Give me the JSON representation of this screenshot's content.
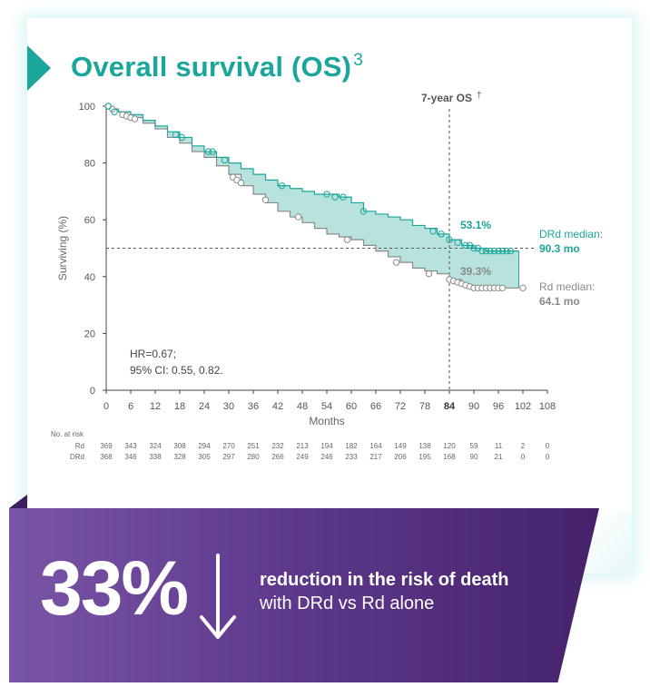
{
  "title": {
    "text": "Overall survival (OS)",
    "superscript": "3"
  },
  "colors": {
    "teal": "#1aa69a",
    "gray": "#8a8a8a",
    "fill": "#9fd8d3",
    "purple_start": "#7a55a6",
    "purple_end": "#45226a"
  },
  "chart_data": {
    "type": "line",
    "xlabel": "Months",
    "ylabel": "Surviving (%)",
    "xlim": [
      0,
      108
    ],
    "ylim": [
      0,
      100
    ],
    "xticks": [
      0,
      6,
      12,
      18,
      24,
      30,
      36,
      42,
      48,
      54,
      60,
      66,
      72,
      78,
      84,
      90,
      96,
      102,
      108
    ],
    "yticks": [
      0,
      20,
      40,
      60,
      80,
      100
    ],
    "highlight_tick": 84,
    "grid": false,
    "series": [
      {
        "name": "DRd",
        "color": "#1aa69a",
        "x": [
          0,
          1,
          3,
          6,
          9,
          12,
          15,
          18,
          21,
          24,
          27,
          30,
          33,
          36,
          39,
          42,
          45,
          48,
          51,
          54,
          57,
          60,
          63,
          66,
          69,
          72,
          75,
          78,
          81,
          84,
          87,
          90,
          93,
          96,
          99,
          101
        ],
        "y": [
          100,
          99,
          98,
          97,
          95,
          93,
          91,
          89,
          86,
          84,
          82,
          80,
          78,
          76,
          74,
          72,
          71,
          70,
          69,
          69,
          68,
          66,
          63,
          62,
          61,
          60,
          58,
          57,
          55,
          53,
          51,
          50,
          49,
          49,
          49,
          49
        ]
      },
      {
        "name": "Rd",
        "color": "#8a8a8a",
        "x": [
          0,
          1,
          3,
          6,
          9,
          12,
          15,
          18,
          21,
          24,
          27,
          30,
          33,
          36,
          39,
          42,
          45,
          48,
          51,
          54,
          57,
          60,
          63,
          66,
          69,
          72,
          75,
          78,
          81,
          84,
          87,
          90,
          93,
          96,
          99,
          101
        ],
        "y": [
          100,
          99,
          98,
          96,
          94,
          92,
          89,
          87,
          84,
          82,
          79,
          76,
          72,
          69,
          66,
          63,
          61,
          59,
          57,
          55,
          54,
          53,
          51,
          49,
          47,
          45,
          43,
          42,
          41,
          39,
          37,
          36,
          36,
          36,
          36,
          36
        ]
      }
    ],
    "censor_marks": {
      "DRd": [
        [
          0.5,
          100
        ],
        [
          2,
          98
        ],
        [
          17,
          90
        ],
        [
          18.5,
          89
        ],
        [
          25,
          84
        ],
        [
          26,
          84
        ],
        [
          29,
          81
        ],
        [
          43,
          72
        ],
        [
          54,
          69
        ],
        [
          56,
          68
        ],
        [
          58,
          68
        ],
        [
          63,
          63
        ],
        [
          80,
          56
        ],
        [
          82,
          55
        ],
        [
          84,
          53
        ],
        [
          86,
          52
        ],
        [
          88,
          51
        ],
        [
          89,
          51
        ],
        [
          90,
          50
        ],
        [
          91,
          50
        ],
        [
          92,
          49
        ],
        [
          93,
          49
        ],
        [
          94,
          49
        ],
        [
          95,
          49
        ],
        [
          96,
          49
        ],
        [
          97,
          49
        ],
        [
          98,
          49
        ],
        [
          99,
          49
        ]
      ],
      "Rd": [
        [
          0.5,
          100
        ],
        [
          1.5,
          99
        ],
        [
          4,
          97
        ],
        [
          5,
          96.5
        ],
        [
          6,
          96
        ],
        [
          7,
          95.5
        ],
        [
          31,
          75
        ],
        [
          32,
          74
        ],
        [
          33,
          73
        ],
        [
          39,
          67
        ],
        [
          47,
          61
        ],
        [
          59,
          53
        ],
        [
          71,
          45
        ],
        [
          79,
          41
        ],
        [
          84,
          39
        ],
        [
          85,
          38.5
        ],
        [
          86,
          38
        ],
        [
          87,
          37.5
        ],
        [
          88,
          37
        ],
        [
          89,
          36.5
        ],
        [
          90,
          36
        ],
        [
          91,
          36
        ],
        [
          92,
          36
        ],
        [
          93,
          36
        ],
        [
          94,
          36
        ],
        [
          95,
          36
        ],
        [
          96,
          36
        ],
        [
          97,
          36
        ],
        [
          102,
          36
        ]
      ]
    },
    "reference_lines": {
      "vertical_x": 84,
      "vertical_label": "7-year OS",
      "vertical_label_sup": "†",
      "horizontal_y": 50
    },
    "annotations": [
      {
        "text": "53.1%",
        "series": "DRd"
      },
      {
        "text": "39.3%",
        "series": "Rd"
      },
      {
        "text": "DRd median:",
        "value": "90.3 mo",
        "series": "DRd"
      },
      {
        "text": "Rd median:",
        "value": "64.1 mo",
        "series": "Rd"
      },
      {
        "text": "HR=0.67;",
        "line2": "95% CI: 0.55, 0.82."
      }
    ],
    "at_risk": {
      "label": "No. at risk",
      "rows": [
        {
          "name": "Rd",
          "values": [
            "369",
            "343",
            "324",
            "308",
            "294",
            "270",
            "251",
            "232",
            "213",
            "194",
            "182",
            "164",
            "149",
            "138",
            "120",
            "59",
            "11",
            "2",
            "0"
          ]
        },
        {
          "name": "DRd",
          "values": [
            "368",
            "346",
            "338",
            "328",
            "305",
            "297",
            "280",
            "266",
            "249",
            "246",
            "233",
            "217",
            "206",
            "195",
            "168",
            "90",
            "21",
            "0",
            "0"
          ]
        }
      ]
    }
  },
  "banner": {
    "percent": "33%",
    "arrow_icon": "down-arrow-icon",
    "line1": "reduction in the risk of death",
    "line2": "with DRd vs Rd alone"
  }
}
